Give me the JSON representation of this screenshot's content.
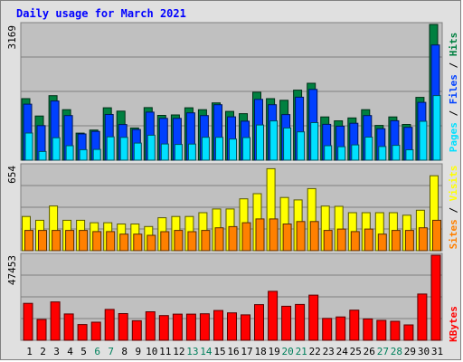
{
  "title": "Daily usage for March 2021",
  "colors": {
    "hits": "#008040",
    "files": "#0040ff",
    "pages": "#00e0ff",
    "visits": "#ffff00",
    "sites": "#ff8000",
    "kbytes": "#ff0000",
    "plot_bg": "#c0c0c0",
    "frame_bg": "#e0e0e0",
    "title": "#0000ff",
    "weekend_label": "#00805c"
  },
  "chart_data": [
    {
      "type": "bar",
      "categories": [
        "1",
        "2",
        "3",
        "4",
        "5",
        "6",
        "7",
        "8",
        "9",
        "10",
        "11",
        "12",
        "13",
        "14",
        "15",
        "16",
        "17",
        "18",
        "19",
        "20",
        "21",
        "22",
        "23",
        "24",
        "25",
        "26",
        "27",
        "28",
        "29",
        "30",
        "31"
      ],
      "weekend_days": [
        "6",
        "7",
        "13",
        "14",
        "20",
        "21",
        "27",
        "28"
      ],
      "y_max_label": "3169",
      "ylim": [
        0,
        3169
      ],
      "legend": [
        "Pages",
        "Files",
        "Hits"
      ],
      "series": [
        {
          "name": "Hits",
          "values": [
            1436,
            1031,
            1506,
            1179,
            632,
            704,
            1223,
            1146,
            752,
            1228,
            1045,
            1057,
            1223,
            1179,
            1338,
            1138,
            1085,
            1587,
            1436,
            1398,
            1635,
            1796,
            1010,
            920,
            987,
            1179,
            812,
            1010,
            835,
            1467,
            3169
          ]
        },
        {
          "name": "Files",
          "values": [
            1308,
            808,
            1382,
            1042,
            612,
            671,
            1066,
            832,
            717,
            1122,
            975,
            975,
            1104,
            1042,
            1296,
            1011,
            910,
            1419,
            1296,
            1064,
            1471,
            1653,
            836,
            795,
            862,
            1042,
            736,
            922,
            766,
            1350,
            2690
          ]
        },
        {
          "name": "Pages",
          "values": [
            634,
            202,
            523,
            339,
            245,
            252,
            545,
            532,
            400,
            584,
            379,
            368,
            376,
            534,
            534,
            495,
            529,
            822,
            917,
            753,
            662,
            877,
            339,
            315,
            356,
            539,
            320,
            346,
            244,
            908,
            1508
          ]
        }
      ]
    },
    {
      "type": "bar",
      "categories": [
        "1",
        "2",
        "3",
        "4",
        "5",
        "6",
        "7",
        "8",
        "9",
        "10",
        "11",
        "12",
        "13",
        "14",
        "15",
        "16",
        "17",
        "18",
        "19",
        "20",
        "21",
        "22",
        "23",
        "24",
        "25",
        "26",
        "27",
        "28",
        "29",
        "30",
        "31"
      ],
      "y_max_label": "654",
      "ylim": [
        0,
        654
      ],
      "legend": [
        "Sites",
        "Visits"
      ],
      "series": [
        {
          "name": "Visits",
          "values": [
            263,
            234,
            344,
            234,
            234,
            215,
            215,
            205,
            205,
            186,
            253,
            263,
            263,
            292,
            321,
            321,
            399,
            438,
            630,
            409,
            390,
            477,
            343,
            341,
            292,
            292,
            292,
            292,
            273,
            311,
            576
          ]
        },
        {
          "name": "Sites",
          "values": [
            156,
            156,
            156,
            156,
            156,
            147,
            147,
            127,
            127,
            118,
            146,
            156,
            146,
            156,
            176,
            185,
            215,
            244,
            244,
            205,
            224,
            224,
            156,
            166,
            147,
            166,
            127,
            156,
            156,
            176,
            234
          ]
        }
      ]
    },
    {
      "type": "bar",
      "categories": [
        "1",
        "2",
        "3",
        "4",
        "5",
        "6",
        "7",
        "8",
        "9",
        "10",
        "11",
        "12",
        "13",
        "14",
        "15",
        "16",
        "17",
        "18",
        "19",
        "20",
        "21",
        "22",
        "23",
        "24",
        "25",
        "26",
        "27",
        "28",
        "29",
        "30",
        "31"
      ],
      "y_max_label": "47453",
      "ylim": [
        0,
        47453
      ],
      "legend": [
        "KBytes"
      ],
      "series": [
        {
          "name": "KBytes",
          "values": [
            20600,
            11600,
            21400,
            14700,
            8800,
            10100,
            17200,
            14900,
            10900,
            15900,
            13800,
            14600,
            14600,
            14800,
            16600,
            15300,
            14200,
            19900,
            27300,
            19000,
            20000,
            25200,
            12200,
            13000,
            16800,
            11900,
            11100,
            10600,
            8600,
            25800,
            47453
          ]
        }
      ]
    }
  ]
}
